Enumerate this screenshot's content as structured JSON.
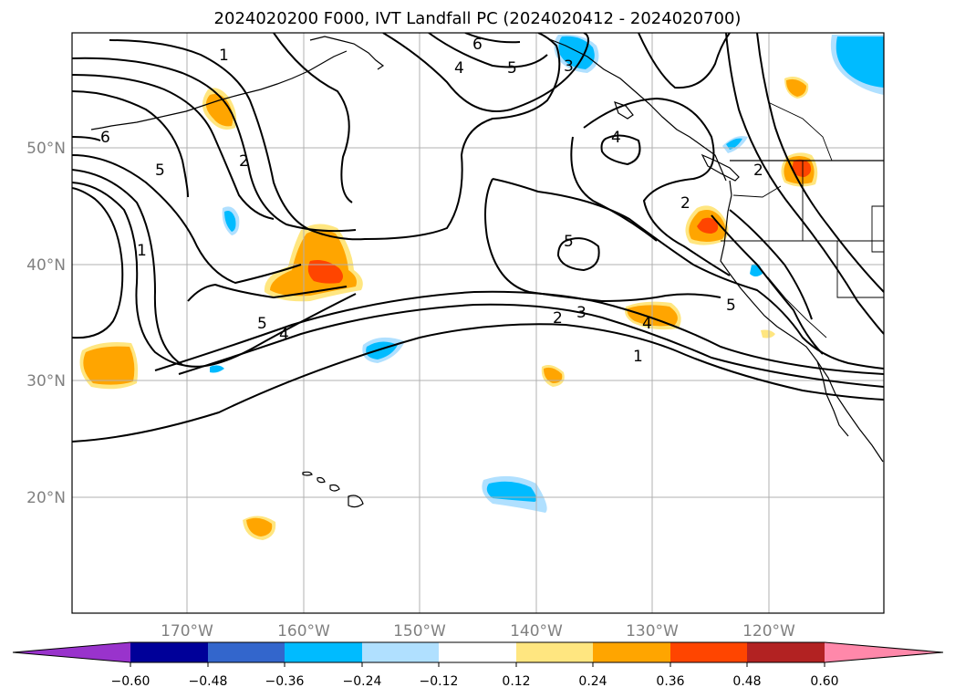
{
  "title": "2024020200 F000, IVT Landfall PC (2024020412 - 2024020700)",
  "map": {
    "latitude_labels": [
      "50°N",
      "40°N",
      "30°N",
      "20°N"
    ],
    "longitude_labels": [
      "170°W",
      "160°W",
      "150°W",
      "140°W",
      "130°W",
      "120°W"
    ],
    "contour_labels": [
      "1",
      "2",
      "3",
      "4",
      "5",
      "6"
    ],
    "gridlines": true
  },
  "colorbar": {
    "ticks": [
      "−0.60",
      "−0.48",
      "−0.36",
      "−0.24",
      "−0.12",
      "0.12",
      "0.24",
      "0.36",
      "0.48",
      "0.60"
    ],
    "colors": [
      "#9933cc",
      "#000099",
      "#3366cc",
      "#00bbff",
      "#b0e0ff",
      "#ffffff",
      "#ffe680",
      "#ffa500",
      "#ff4500",
      "#b22222",
      "#ff88aa"
    ],
    "extend": "both"
  }
}
